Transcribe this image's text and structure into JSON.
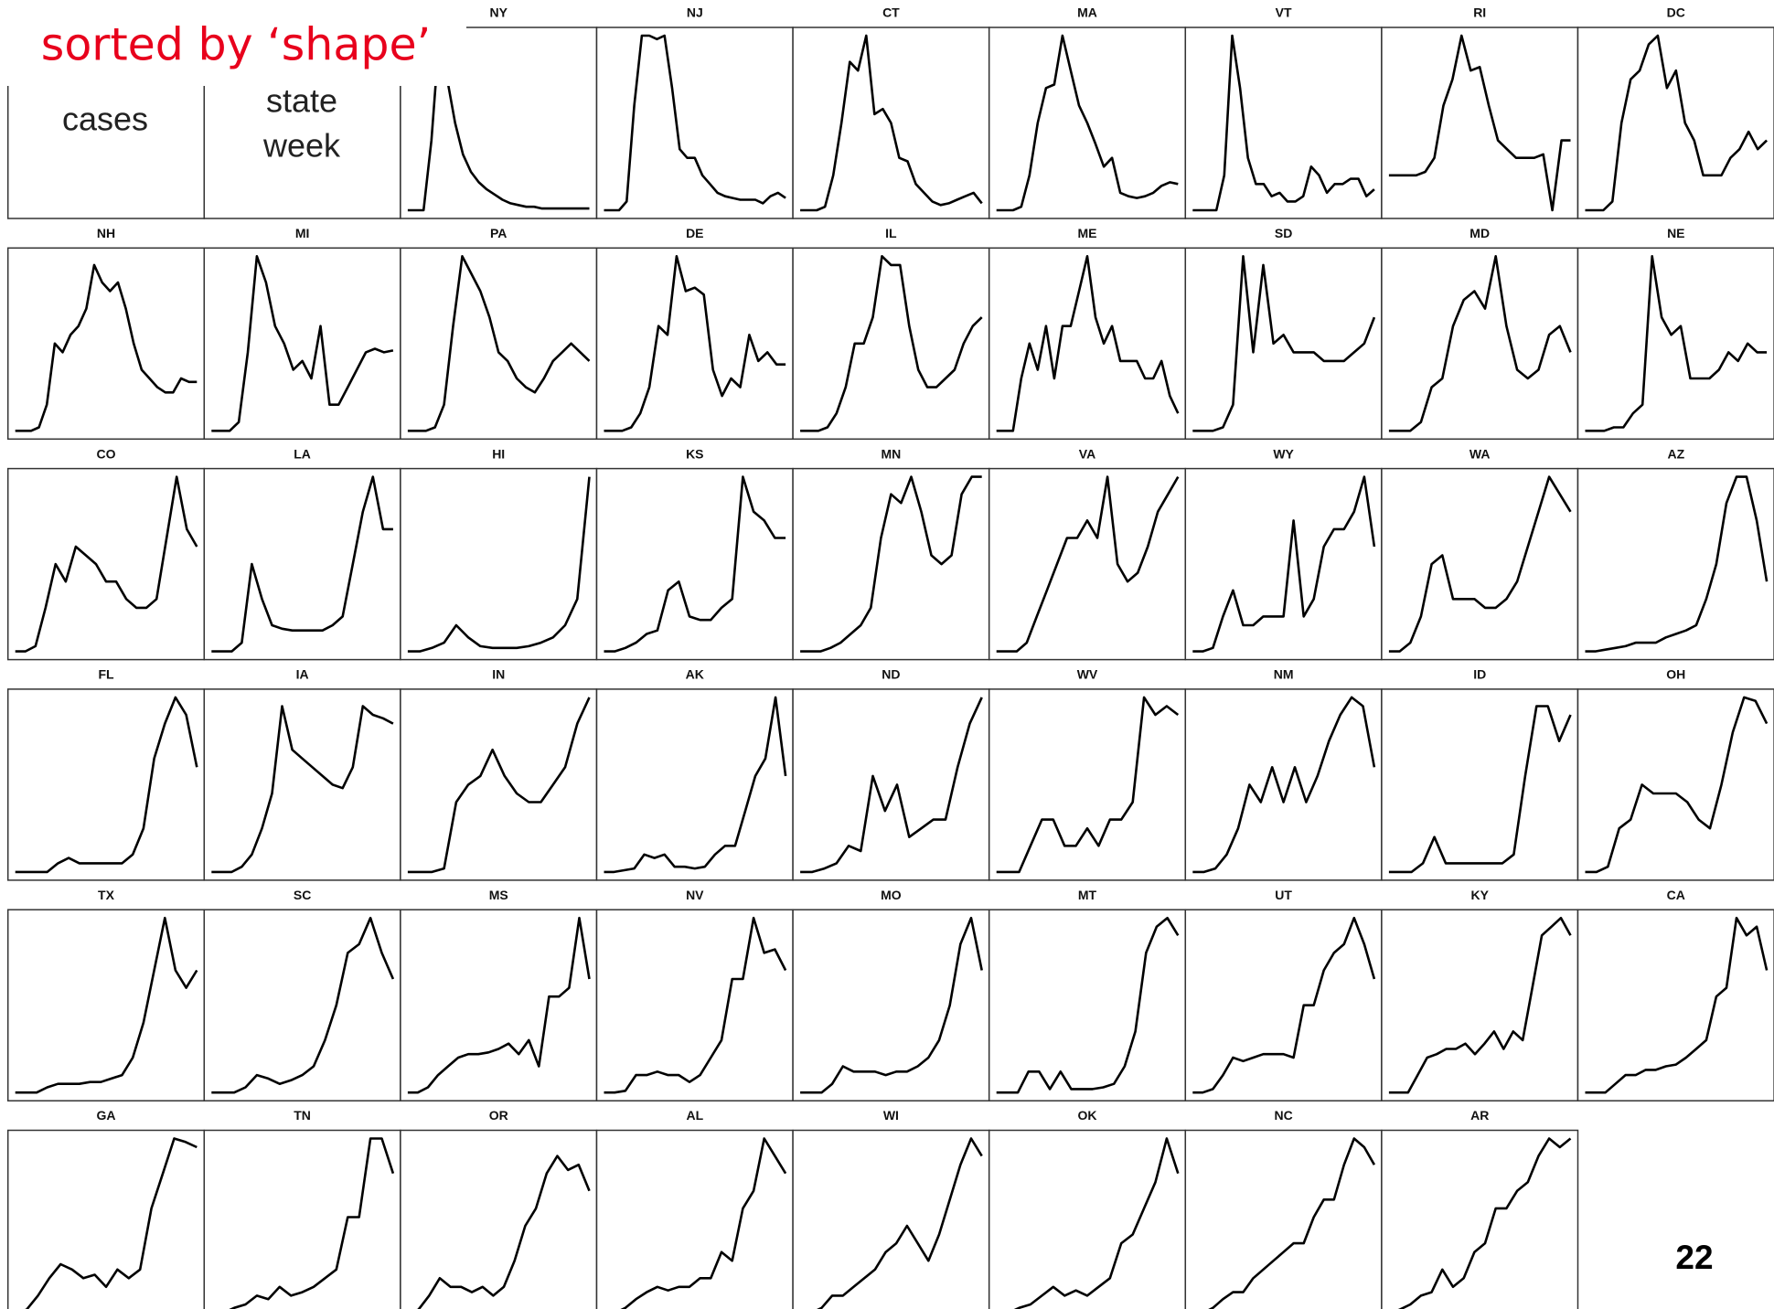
{
  "slide": {
    "heading": "sorted by ‘shape’",
    "page_number": "22"
  },
  "axis_key": {
    "y_label": "cases",
    "x_label_lines": [
      "state",
      "week"
    ]
  },
  "chart_data": [
    {
      "type": "line",
      "title": "NY",
      "ylim": [
        0,
        100
      ],
      "values": [
        0,
        0,
        0,
        40,
        100,
        75,
        50,
        32,
        22,
        16,
        12,
        9,
        6,
        4,
        3,
        2,
        2,
        1,
        1,
        1,
        1,
        1,
        1,
        1
      ]
    },
    {
      "type": "line",
      "title": "NJ",
      "ylim": [
        0,
        100
      ],
      "values": [
        0,
        0,
        0,
        5,
        60,
        100,
        100,
        98,
        100,
        70,
        35,
        30,
        30,
        20,
        15,
        10,
        8,
        7,
        6,
        6,
        6,
        4,
        8,
        10,
        7
      ]
    },
    {
      "type": "line",
      "title": "CT",
      "ylim": [
        0,
        100
      ],
      "values": [
        0,
        0,
        0,
        2,
        20,
        50,
        85,
        80,
        100,
        55,
        58,
        50,
        30,
        28,
        15,
        10,
        5,
        3,
        4,
        6,
        8,
        10,
        4
      ]
    },
    {
      "type": "line",
      "title": "MA",
      "ylim": [
        0,
        100
      ],
      "values": [
        0,
        0,
        0,
        2,
        20,
        50,
        70,
        72,
        100,
        80,
        60,
        50,
        38,
        25,
        30,
        10,
        8,
        7,
        8,
        10,
        14,
        16,
        15
      ]
    },
    {
      "type": "line",
      "title": "VT",
      "ylim": [
        0,
        100
      ],
      "values": [
        0,
        0,
        0,
        0,
        20,
        100,
        70,
        30,
        15,
        15,
        8,
        10,
        5,
        5,
        8,
        25,
        20,
        10,
        15,
        15,
        18,
        18,
        8,
        12
      ]
    },
    {
      "type": "line",
      "title": "RI",
      "ylim": [
        0,
        100
      ],
      "values": [
        20,
        20,
        20,
        20,
        22,
        30,
        60,
        75,
        100,
        80,
        82,
        60,
        40,
        35,
        30,
        30,
        30,
        32,
        0,
        40,
        40
      ]
    },
    {
      "type": "line",
      "title": "DC",
      "ylim": [
        0,
        100
      ],
      "values": [
        0,
        0,
        0,
        5,
        50,
        75,
        80,
        95,
        100,
        70,
        80,
        50,
        40,
        20,
        20,
        20,
        30,
        35,
        45,
        35,
        40
      ]
    },
    {
      "type": "line",
      "title": "NH",
      "ylim": [
        0,
        100
      ],
      "values": [
        0,
        0,
        0,
        2,
        15,
        50,
        45,
        55,
        60,
        70,
        95,
        85,
        80,
        85,
        70,
        50,
        35,
        30,
        25,
        22,
        22,
        30,
        28,
        28
      ]
    },
    {
      "type": "line",
      "title": "MI",
      "ylim": [
        0,
        100
      ],
      "values": [
        0,
        0,
        0,
        5,
        45,
        100,
        85,
        60,
        50,
        35,
        40,
        30,
        60,
        15,
        15,
        25,
        35,
        45,
        47,
        45,
        46
      ]
    },
    {
      "type": "line",
      "title": "PA",
      "ylim": [
        0,
        100
      ],
      "values": [
        0,
        0,
        0,
        2,
        15,
        60,
        100,
        90,
        80,
        65,
        45,
        40,
        30,
        25,
        22,
        30,
        40,
        45,
        50,
        45,
        40
      ]
    },
    {
      "type": "line",
      "title": "DE",
      "ylim": [
        0,
        100
      ],
      "values": [
        0,
        0,
        0,
        2,
        10,
        25,
        60,
        55,
        100,
        80,
        82,
        78,
        35,
        20,
        30,
        25,
        55,
        40,
        45,
        38,
        38
      ]
    },
    {
      "type": "line",
      "title": "IL",
      "ylim": [
        0,
        100
      ],
      "values": [
        0,
        0,
        0,
        2,
        10,
        25,
        50,
        50,
        65,
        100,
        95,
        95,
        60,
        35,
        25,
        25,
        30,
        35,
        50,
        60,
        65
      ]
    },
    {
      "type": "line",
      "title": "ME",
      "ylim": [
        0,
        100
      ],
      "values": [
        0,
        0,
        0,
        30,
        50,
        35,
        60,
        30,
        60,
        60,
        80,
        100,
        65,
        50,
        60,
        40,
        40,
        40,
        30,
        30,
        40,
        20,
        10
      ]
    },
    {
      "type": "line",
      "title": "SD",
      "ylim": [
        0,
        100
      ],
      "values": [
        0,
        0,
        0,
        2,
        15,
        100,
        45,
        95,
        50,
        55,
        45,
        45,
        45,
        40,
        40,
        40,
        45,
        50,
        65
      ]
    },
    {
      "type": "line",
      "title": "MD",
      "ylim": [
        0,
        100
      ],
      "values": [
        0,
        0,
        0,
        5,
        25,
        30,
        60,
        75,
        80,
        70,
        100,
        60,
        35,
        30,
        35,
        55,
        60,
        45
      ]
    },
    {
      "type": "line",
      "title": "NE",
      "ylim": [
        0,
        100
      ],
      "values": [
        0,
        0,
        0,
        2,
        2,
        10,
        15,
        100,
        65,
        55,
        60,
        30,
        30,
        30,
        35,
        45,
        40,
        50,
        45,
        45
      ]
    },
    {
      "type": "line",
      "title": "CO",
      "ylim": [
        0,
        100
      ],
      "values": [
        0,
        0,
        3,
        25,
        50,
        40,
        60,
        55,
        50,
        40,
        40,
        30,
        25,
        25,
        30,
        65,
        100,
        70,
        60
      ]
    },
    {
      "type": "line",
      "title": "LA",
      "ylim": [
        0,
        100
      ],
      "values": [
        0,
        0,
        0,
        5,
        50,
        30,
        15,
        13,
        12,
        12,
        12,
        12,
        15,
        20,
        50,
        80,
        100,
        70,
        70
      ]
    },
    {
      "type": "line",
      "title": "HI",
      "ylim": [
        0,
        100
      ],
      "values": [
        0,
        0,
        2,
        5,
        15,
        8,
        3,
        2,
        2,
        2,
        3,
        5,
        8,
        15,
        30,
        100
      ]
    },
    {
      "type": "line",
      "title": "KS",
      "ylim": [
        0,
        100
      ],
      "values": [
        0,
        0,
        2,
        5,
        10,
        12,
        35,
        40,
        20,
        18,
        18,
        25,
        30,
        100,
        80,
        75,
        65,
        65
      ]
    },
    {
      "type": "line",
      "title": "MN",
      "ylim": [
        0,
        100
      ],
      "values": [
        0,
        0,
        0,
        2,
        5,
        10,
        15,
        25,
        65,
        90,
        85,
        100,
        80,
        55,
        50,
        55,
        90,
        100,
        100
      ]
    },
    {
      "type": "line",
      "title": "VA",
      "ylim": [
        0,
        100
      ],
      "values": [
        0,
        0,
        0,
        5,
        20,
        35,
        50,
        65,
        65,
        75,
        65,
        100,
        50,
        40,
        45,
        60,
        80,
        90,
        100
      ]
    },
    {
      "type": "line",
      "title": "WY",
      "ylim": [
        0,
        100
      ],
      "values": [
        0,
        0,
        2,
        20,
        35,
        15,
        15,
        20,
        20,
        20,
        75,
        20,
        30,
        60,
        70,
        70,
        80,
        100,
        60
      ]
    },
    {
      "type": "line",
      "title": "WA",
      "ylim": [
        0,
        100
      ],
      "values": [
        0,
        0,
        5,
        20,
        50,
        55,
        30,
        30,
        30,
        25,
        25,
        30,
        40,
        60,
        80,
        100,
        90,
        80
      ]
    },
    {
      "type": "line",
      "title": "AZ",
      "ylim": [
        0,
        100
      ],
      "values": [
        0,
        0,
        1,
        2,
        3,
        5,
        5,
        5,
        8,
        10,
        12,
        15,
        30,
        50,
        85,
        100,
        100,
        75,
        40
      ]
    },
    {
      "type": "line",
      "title": "FL",
      "ylim": [
        0,
        100
      ],
      "values": [
        0,
        0,
        0,
        0,
        5,
        8,
        5,
        5,
        5,
        5,
        5,
        10,
        25,
        65,
        85,
        100,
        90,
        60
      ]
    },
    {
      "type": "line",
      "title": "IA",
      "ylim": [
        0,
        100
      ],
      "values": [
        0,
        0,
        0,
        3,
        10,
        25,
        45,
        95,
        70,
        65,
        60,
        55,
        50,
        48,
        60,
        95,
        90,
        88,
        85
      ]
    },
    {
      "type": "line",
      "title": "IN",
      "ylim": [
        0,
        100
      ],
      "values": [
        0,
        0,
        0,
        2,
        40,
        50,
        55,
        70,
        55,
        45,
        40,
        40,
        50,
        60,
        85,
        100
      ]
    },
    {
      "type": "line",
      "title": "AK",
      "ylim": [
        0,
        100
      ],
      "values": [
        0,
        0,
        1,
        2,
        10,
        8,
        10,
        3,
        3,
        2,
        3,
        10,
        15,
        15,
        35,
        55,
        65,
        100,
        55
      ]
    },
    {
      "type": "line",
      "title": "ND",
      "ylim": [
        0,
        100
      ],
      "values": [
        0,
        0,
        2,
        5,
        15,
        12,
        55,
        35,
        50,
        20,
        25,
        30,
        30,
        60,
        85,
        100
      ]
    },
    {
      "type": "line",
      "title": "WV",
      "ylim": [
        0,
        100
      ],
      "values": [
        0,
        0,
        0,
        15,
        30,
        30,
        15,
        15,
        25,
        15,
        30,
        30,
        40,
        100,
        90,
        95,
        90
      ]
    },
    {
      "type": "line",
      "title": "NM",
      "ylim": [
        0,
        100
      ],
      "values": [
        0,
        0,
        2,
        10,
        25,
        50,
        40,
        60,
        40,
        60,
        40,
        55,
        75,
        90,
        100,
        95,
        60
      ]
    },
    {
      "type": "line",
      "title": "ID",
      "ylim": [
        0,
        100
      ],
      "values": [
        0,
        0,
        0,
        5,
        20,
        5,
        5,
        5,
        5,
        5,
        5,
        10,
        55,
        95,
        95,
        75,
        90
      ]
    },
    {
      "type": "line",
      "title": "OH",
      "ylim": [
        0,
        100
      ],
      "values": [
        0,
        0,
        3,
        25,
        30,
        50,
        45,
        45,
        45,
        40,
        30,
        25,
        50,
        80,
        100,
        98,
        85
      ]
    },
    {
      "type": "line",
      "title": "TX",
      "ylim": [
        0,
        100
      ],
      "values": [
        0,
        0,
        0,
        3,
        5,
        5,
        5,
        6,
        6,
        8,
        10,
        20,
        40,
        70,
        100,
        70,
        60,
        70
      ]
    },
    {
      "type": "line",
      "title": "SC",
      "ylim": [
        0,
        100
      ],
      "values": [
        0,
        0,
        0,
        3,
        10,
        8,
        5,
        7,
        10,
        15,
        30,
        50,
        80,
        85,
        100,
        80,
        65
      ]
    },
    {
      "type": "line",
      "title": "MS",
      "ylim": [
        0,
        100
      ],
      "values": [
        0,
        0,
        3,
        10,
        15,
        20,
        22,
        22,
        23,
        25,
        28,
        22,
        30,
        15,
        55,
        55,
        60,
        100,
        65
      ]
    },
    {
      "type": "line",
      "title": "NV",
      "ylim": [
        0,
        100
      ],
      "values": [
        0,
        0,
        1,
        10,
        10,
        12,
        10,
        10,
        6,
        10,
        20,
        30,
        65,
        65,
        100,
        80,
        82,
        70
      ]
    },
    {
      "type": "line",
      "title": "MO",
      "ylim": [
        0,
        100
      ],
      "values": [
        0,
        0,
        0,
        5,
        15,
        12,
        12,
        12,
        10,
        12,
        12,
        15,
        20,
        30,
        50,
        85,
        100,
        70
      ]
    },
    {
      "type": "line",
      "title": "MT",
      "ylim": [
        0,
        100
      ],
      "values": [
        0,
        0,
        0,
        12,
        12,
        2,
        12,
        2,
        2,
        2,
        3,
        5,
        15,
        35,
        80,
        95,
        100,
        90
      ]
    },
    {
      "type": "line",
      "title": "UT",
      "ylim": [
        0,
        100
      ],
      "values": [
        0,
        0,
        2,
        10,
        20,
        18,
        20,
        22,
        22,
        22,
        20,
        50,
        50,
        70,
        80,
        85,
        100,
        85,
        65
      ]
    },
    {
      "type": "line",
      "title": "KY",
      "ylim": [
        0,
        100
      ],
      "values": [
        0,
        0,
        0,
        10,
        20,
        22,
        25,
        25,
        28,
        22,
        28,
        35,
        25,
        35,
        30,
        60,
        90,
        95,
        100,
        90
      ]
    },
    {
      "type": "line",
      "title": "CA",
      "ylim": [
        0,
        100
      ],
      "values": [
        0,
        0,
        0,
        5,
        10,
        10,
        13,
        13,
        15,
        16,
        20,
        25,
        30,
        55,
        60,
        100,
        90,
        95,
        70
      ]
    },
    {
      "type": "line",
      "title": "GA",
      "ylim": [
        0,
        100
      ],
      "values": [
        0,
        2,
        10,
        20,
        28,
        25,
        20,
        22,
        15,
        25,
        20,
        25,
        60,
        80,
        100,
        98,
        95
      ]
    },
    {
      "type": "line",
      "title": "TN",
      "ylim": [
        0,
        100
      ],
      "values": [
        0,
        0,
        3,
        5,
        10,
        8,
        15,
        10,
        12,
        15,
        20,
        25,
        55,
        55,
        100,
        100,
        80
      ]
    },
    {
      "type": "line",
      "title": "OR",
      "ylim": [
        0,
        100
      ],
      "values": [
        0,
        2,
        10,
        20,
        15,
        15,
        12,
        15,
        10,
        15,
        30,
        50,
        60,
        80,
        90,
        82,
        85,
        70
      ]
    },
    {
      "type": "line",
      "title": "AL",
      "ylim": [
        0,
        100
      ],
      "values": [
        0,
        0,
        3,
        8,
        12,
        15,
        13,
        15,
        15,
        20,
        20,
        35,
        30,
        60,
        70,
        100,
        90,
        80
      ]
    },
    {
      "type": "line",
      "title": "WI",
      "ylim": [
        0,
        100
      ],
      "values": [
        0,
        0,
        3,
        10,
        10,
        15,
        20,
        25,
        35,
        40,
        50,
        40,
        30,
        45,
        65,
        85,
        100,
        90
      ]
    },
    {
      "type": "line",
      "title": "OK",
      "ylim": [
        0,
        100
      ],
      "values": [
        0,
        0,
        3,
        5,
        10,
        15,
        10,
        13,
        10,
        15,
        20,
        40,
        45,
        60,
        75,
        100,
        80
      ]
    },
    {
      "type": "line",
      "title": "NC",
      "ylim": [
        0,
        100
      ],
      "values": [
        0,
        0,
        3,
        8,
        12,
        12,
        20,
        25,
        30,
        35,
        40,
        40,
        55,
        65,
        65,
        85,
        100,
        95,
        85
      ]
    },
    {
      "type": "line",
      "title": "AR",
      "ylim": [
        0,
        100
      ],
      "values": [
        0,
        2,
        5,
        10,
        12,
        25,
        15,
        20,
        35,
        40,
        60,
        60,
        70,
        75,
        90,
        100,
        95,
        100
      ]
    }
  ]
}
